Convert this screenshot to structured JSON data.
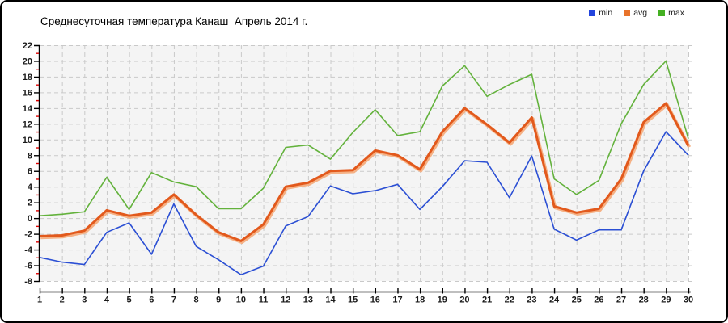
{
  "window": {
    "kind": "static-chart-image"
  },
  "legend": {
    "position": "top-right"
  },
  "chart_data": {
    "type": "line",
    "title": "Среднесуточная температура Канаш  Апрель 2014 г.",
    "xlabel": "",
    "ylabel": "",
    "x": [
      1,
      2,
      3,
      4,
      5,
      6,
      7,
      8,
      9,
      10,
      11,
      12,
      13,
      14,
      15,
      16,
      17,
      18,
      19,
      20,
      21,
      22,
      23,
      24,
      25,
      26,
      27,
      28,
      29,
      30
    ],
    "x_tick_labels": [
      "1",
      "2",
      "3",
      "4",
      "5",
      "6",
      "7",
      "8",
      "9",
      "10",
      "11",
      "12",
      "13",
      "14",
      "15",
      "16",
      "17",
      "18",
      "19",
      "20",
      "21",
      "22",
      "23",
      "24",
      "25",
      "26",
      "27",
      "28",
      "29",
      "30"
    ],
    "ylim": [
      -8,
      22
    ],
    "y_major_ticks": [
      22,
      20,
      18,
      16,
      14,
      12,
      10,
      8,
      6,
      4,
      2,
      0,
      -2,
      -4,
      -6,
      -8
    ],
    "y_minor_ticks": [
      21,
      19,
      17,
      15,
      13,
      11,
      9,
      7,
      5,
      3,
      1,
      -1,
      -3,
      -5,
      -7
    ],
    "grid": "dashed both axes",
    "series": [
      {
        "name": "min",
        "color": "#2b4fd4",
        "line_width": 1.6,
        "values": [
          -5.0,
          -5.6,
          -5.9,
          -1.8,
          -0.6,
          -4.6,
          1.8,
          -3.6,
          -5.3,
          -7.2,
          -6.1,
          -1.0,
          0.2,
          4.1,
          3.1,
          3.5,
          4.3,
          1.1,
          4.0,
          7.3,
          7.1,
          2.6,
          7.9,
          -1.4,
          -2.8,
          -1.5,
          -1.5,
          6.0,
          11.0,
          8.0
        ]
      },
      {
        "name": "avg",
        "color": "#e2591c",
        "halo_color": "#f5b185",
        "line_width": 3,
        "values": [
          -2.3,
          -2.2,
          -1.6,
          1.0,
          0.3,
          0.7,
          3.0,
          0.4,
          -1.8,
          -2.9,
          -0.8,
          4.0,
          4.5,
          6.0,
          6.1,
          8.6,
          8.0,
          6.2,
          11.0,
          14.0,
          11.9,
          9.6,
          12.8,
          1.5,
          0.7,
          1.2,
          5.0,
          12.2,
          14.6,
          9.2
        ]
      },
      {
        "name": "max",
        "color": "#63b23c",
        "line_width": 1.6,
        "values": [
          0.3,
          0.5,
          0.8,
          5.2,
          1.1,
          5.8,
          4.6,
          4.0,
          1.2,
          1.2,
          3.8,
          9.0,
          9.3,
          7.5,
          10.9,
          13.8,
          10.5,
          11.0,
          16.8,
          19.4,
          15.5,
          17.0,
          18.3,
          5.0,
          3.0,
          4.8,
          12.0,
          17.0,
          20.0,
          10.1
        ]
      }
    ],
    "legend_entries": [
      {
        "label": "min",
        "color": "#2244dd"
      },
      {
        "label": "avg",
        "color": "#e8732a"
      },
      {
        "label": "max",
        "color": "#44b022"
      }
    ],
    "style": {
      "plot_bg": "#f4f4f4",
      "outer_bg": "#ffffff",
      "gridline_color": "#c9c9c9",
      "axis_color": "#000000",
      "minor_tick_color": "#dd0000",
      "tick_label_color": "#1a1a1a",
      "title_color": "#000000"
    }
  }
}
